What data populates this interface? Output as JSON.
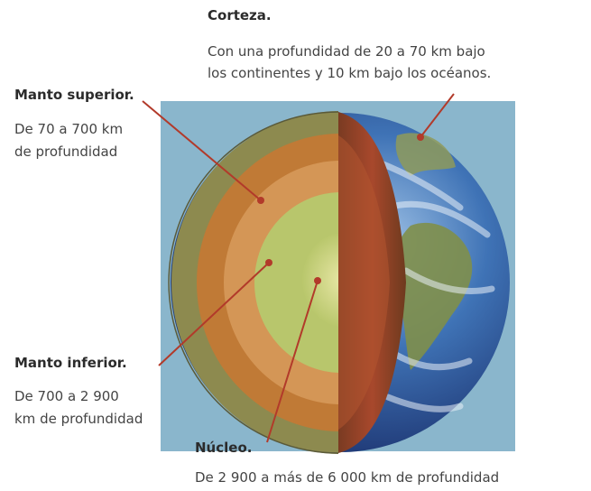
{
  "labels": {
    "corteza": {
      "title": "Corteza.",
      "line1": "Con una profundidad de 20 a 70 km bajo",
      "line2": "los continentes y 10 km bajo los océanos."
    },
    "manto_superior": {
      "title": "Manto superior.",
      "line1": "De 70 a 700 km",
      "line2": "de profundidad"
    },
    "manto_inferior": {
      "title": "Manto inferior.",
      "line1": "De 700 a 2 900",
      "line2": "km de profundidad"
    },
    "nucleo": {
      "title": "Núcleo.",
      "line1": "De 2 900 a más de 6 000 km de profundidad"
    }
  },
  "colors": {
    "background_panel": "#8ab6cc",
    "ocean": "#2e5f9e",
    "crust": "#8c8a50",
    "upper_mantle": "#c07a36",
    "lower_mantle": "#d59a56",
    "outer_core": "#b5c66a",
    "inner_core": "#d3d98a",
    "cut_face": "#9a4a2a",
    "pointer_line": "#b23a2a"
  }
}
